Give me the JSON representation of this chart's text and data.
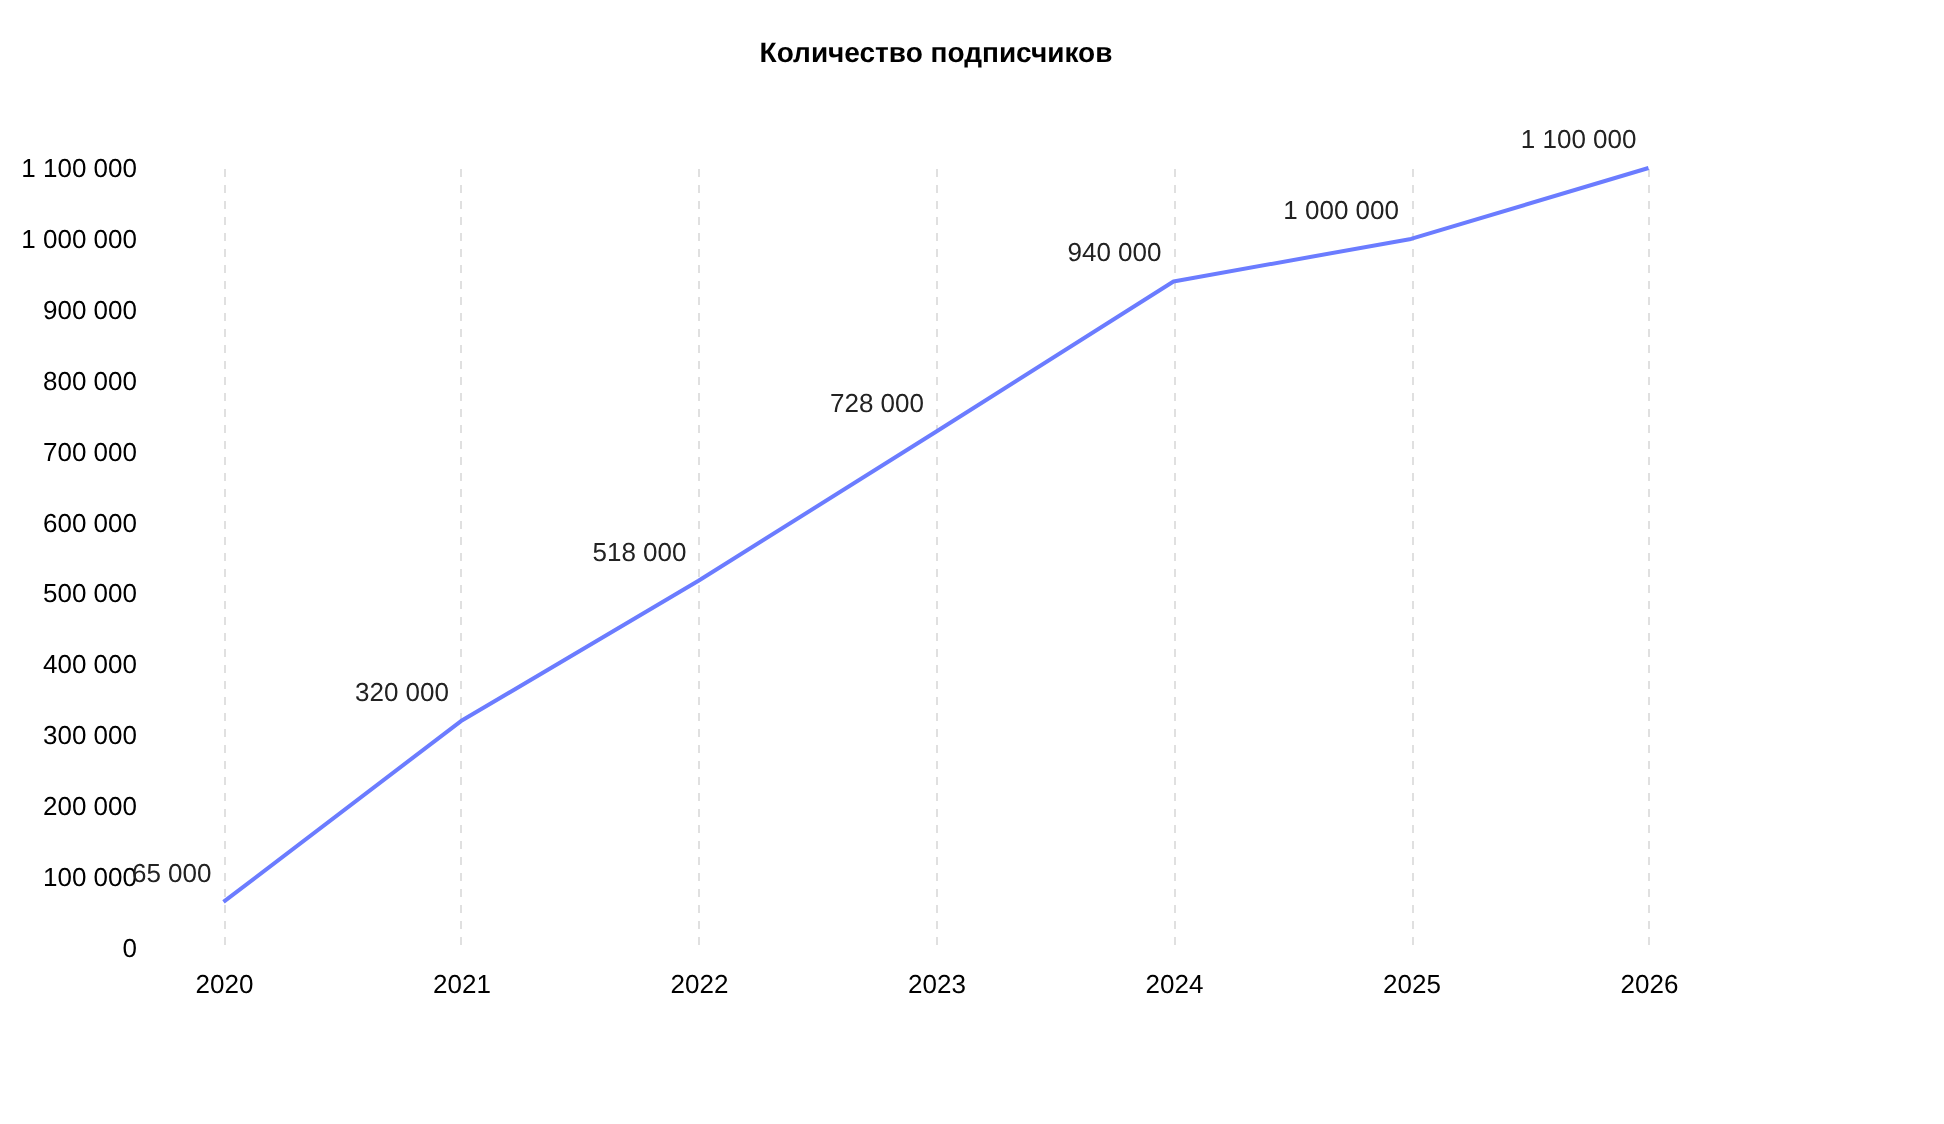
{
  "chart_data": {
    "type": "line",
    "title": "Количество подписчиков",
    "categories": [
      "2020",
      "2021",
      "2022",
      "2023",
      "2024",
      "2025",
      "2026"
    ],
    "series": [
      {
        "color": "#6b7cff",
        "values": [
          65000,
          320000,
          518000,
          728000,
          940000,
          1000000,
          1100000
        ]
      }
    ],
    "ylim": [
      0,
      1100000
    ],
    "yticks": [
      0,
      100000,
      200000,
      300000,
      400000,
      500000,
      600000,
      700000,
      800000,
      900000,
      1000000,
      1100000
    ],
    "grid": "x",
    "data_labels": true,
    "marker": "none",
    "line_style": "solid",
    "legend": false
  }
}
